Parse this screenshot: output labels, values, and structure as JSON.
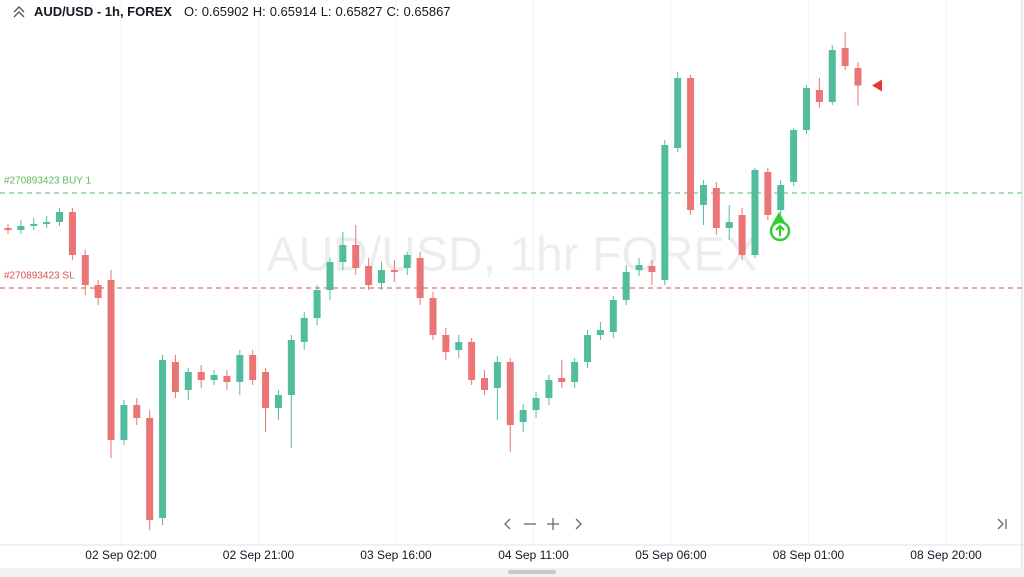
{
  "chart_data": {
    "type": "candlestick",
    "title": "AUD/USD - 1h, FOREX",
    "watermark": "AUD/USD, 1hr FOREX",
    "ohlc_labels": [
      "O:",
      "H:",
      "L:",
      "C:"
    ],
    "open": [
      0.65582,
      0.65578,
      0.65586,
      0.6559,
      0.65594,
      0.65614,
      0.65528,
      0.65468,
      0.65478,
      0.65158,
      0.65228,
      0.65202,
      0.65002,
      0.65314,
      0.65258,
      0.65294,
      0.65278,
      0.65286,
      0.65274,
      0.65328,
      0.65294,
      0.65222,
      0.65248,
      0.65354,
      0.65402,
      0.65458,
      0.65514,
      0.65548,
      0.65506,
      0.65472,
      0.65498,
      0.65502,
      0.65522,
      0.65442,
      0.65368,
      0.65338,
      0.65354,
      0.65282,
      0.65262,
      0.65314,
      0.65194,
      0.65218,
      0.65242,
      0.65282,
      0.65274,
      0.65314,
      0.65368,
      0.65374,
      0.65438,
      0.65498,
      0.65506,
      0.65478,
      0.65742,
      0.65882,
      0.65628,
      0.65662,
      0.65582,
      0.65608,
      0.65528,
      0.65694,
      0.65618,
      0.65674,
      0.65778,
      0.65858,
      0.65834,
      0.65942,
      0.65902
    ],
    "high": [
      0.6559,
      0.65598,
      0.65602,
      0.65606,
      0.65622,
      0.65622,
      0.65538,
      0.65478,
      0.65498,
      0.65238,
      0.65242,
      0.65218,
      0.65328,
      0.65328,
      0.65302,
      0.65308,
      0.65298,
      0.65298,
      0.65338,
      0.65338,
      0.65302,
      0.65258,
      0.65368,
      0.65414,
      0.65468,
      0.65522,
      0.65574,
      0.65588,
      0.65522,
      0.65514,
      0.65518,
      0.65534,
      0.65534,
      0.65454,
      0.65382,
      0.65368,
      0.65362,
      0.65298,
      0.65326,
      0.65322,
      0.6523,
      0.65254,
      0.65288,
      0.65318,
      0.65322,
      0.65378,
      0.65394,
      0.65446,
      0.65508,
      0.65522,
      0.65518,
      0.65758,
      0.65894,
      0.65888,
      0.65678,
      0.65674,
      0.65628,
      0.65622,
      0.65702,
      0.65702,
      0.65678,
      0.65782,
      0.65868,
      0.65882,
      0.65948,
      0.65974,
      0.65914
    ],
    "low": [
      0.6557,
      0.6557,
      0.65578,
      0.65582,
      0.65586,
      0.65518,
      0.65448,
      0.65428,
      0.65122,
      0.65148,
      0.65188,
      0.64978,
      0.64988,
      0.65242,
      0.65238,
      0.65262,
      0.65268,
      0.65258,
      0.65248,
      0.65268,
      0.65174,
      0.65198,
      0.65142,
      0.65338,
      0.65388,
      0.65438,
      0.65498,
      0.65488,
      0.65458,
      0.65458,
      0.65474,
      0.65488,
      0.65428,
      0.65358,
      0.65318,
      0.65322,
      0.65268,
      0.65248,
      0.65198,
      0.65134,
      0.65174,
      0.65202,
      0.65228,
      0.65262,
      0.65262,
      0.65302,
      0.65358,
      0.65362,
      0.65428,
      0.65486,
      0.65468,
      0.65468,
      0.65734,
      0.65608,
      0.65588,
      0.65568,
      0.65558,
      0.65518,
      0.65522,
      0.65598,
      0.65608,
      0.65666,
      0.6577,
      0.65822,
      0.65828,
      0.65898,
      0.65827
    ],
    "close": [
      0.65578,
      0.65586,
      0.6559,
      0.65594,
      0.65614,
      0.65528,
      0.65468,
      0.65442,
      0.65158,
      0.65228,
      0.65202,
      0.64998,
      0.65318,
      0.65254,
      0.65294,
      0.65278,
      0.65288,
      0.65274,
      0.65328,
      0.65278,
      0.65222,
      0.65248,
      0.65358,
      0.65402,
      0.65458,
      0.65514,
      0.65548,
      0.65502,
      0.65468,
      0.65498,
      0.65494,
      0.65528,
      0.65442,
      0.65368,
      0.65334,
      0.65354,
      0.65278,
      0.65258,
      0.65314,
      0.65188,
      0.65218,
      0.65242,
      0.65278,
      0.65274,
      0.65314,
      0.65368,
      0.65378,
      0.65438,
      0.65494,
      0.65508,
      0.65494,
      0.65748,
      0.65882,
      0.65618,
      0.65668,
      0.65582,
      0.65594,
      0.65528,
      0.65698,
      0.65608,
      0.65668,
      0.65778,
      0.65862,
      0.65834,
      0.65938,
      0.65906,
      0.65867
    ],
    "up_color": "#52bd9c",
    "down_color": "#eb7474",
    "ylim": [
      0.64948,
      0.66038
    ],
    "xticks": [
      "02 Sep 02:00",
      "02 Sep 21:00",
      "03 Sep 16:00",
      "04 Sep 11:00",
      "05 Sep 06:00",
      "08 Sep 01:00",
      "08 Sep 20:00"
    ],
    "order_lines": [
      {
        "label": "#270893423 BUY 1",
        "value": 0.65652,
        "color": "#5cb85c"
      },
      {
        "label": "#270893423 SL",
        "value": 0.65462,
        "color": "#d9534f"
      }
    ]
  }
}
